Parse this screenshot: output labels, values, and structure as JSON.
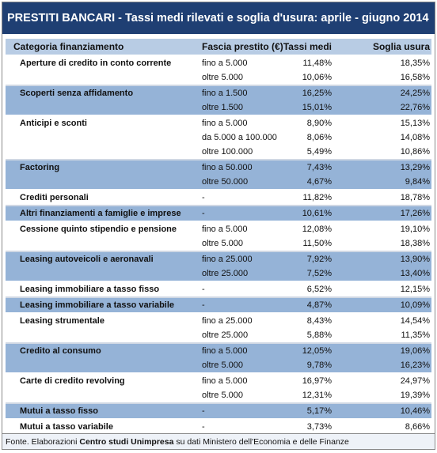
{
  "title": "PRESTITI BANCARI - Tassi medi rilevati e soglia d'usura: aprile - giugno 2014",
  "header": [
    "Categoria finanziamento",
    "Fascia prestito (€)",
    "Tassi medi",
    "Soglia usura"
  ],
  "groups": [
    {
      "category": "Aperture di credito in conto corrente",
      "rows": [
        [
          "fino a 5.000",
          "11,48%",
          "18,35%"
        ],
        [
          "oltre 5.000",
          "10,06%",
          "16,58%"
        ]
      ]
    },
    {
      "category": "Scoperti senza affidamento",
      "rows": [
        [
          "fino a 1.500",
          "16,25%",
          "24,25%"
        ],
        [
          "oltre 1.500",
          "15,01%",
          "22,76%"
        ]
      ]
    },
    {
      "category": "Anticipi e sconti",
      "rows": [
        [
          "fino a 5.000",
          "8,90%",
          "15,13%"
        ],
        [
          "da 5.000 a 100.000",
          "8,06%",
          "14,08%"
        ],
        [
          "oltre 100.000",
          "5,49%",
          "10,86%"
        ]
      ]
    },
    {
      "category": "Factoring",
      "rows": [
        [
          "fino a 50.000",
          "7,43%",
          "13,29%"
        ],
        [
          "oltre 50.000",
          "4,67%",
          "9,84%"
        ]
      ]
    },
    {
      "category": "Crediti personali",
      "rows": [
        [
          "-",
          "11,82%",
          "18,78%"
        ]
      ]
    },
    {
      "category": "Altri finanziamenti a famiglie e imprese",
      "rows": [
        [
          "-",
          "10,61%",
          "17,26%"
        ]
      ]
    },
    {
      "category": "Cessione quinto stipendio e pensione",
      "rows": [
        [
          "fino a 5.000",
          "12,08%",
          "19,10%"
        ],
        [
          "oltre 5.000",
          "11,50%",
          "18,38%"
        ]
      ]
    },
    {
      "category": "Leasing autoveicoli e aeronavali",
      "rows": [
        [
          "fino a 25.000",
          "7,92%",
          "13,90%"
        ],
        [
          "oltre 25.000",
          "7,52%",
          "13,40%"
        ]
      ]
    },
    {
      "category": "Leasing immobiliare a tasso fisso",
      "rows": [
        [
          "-",
          "6,52%",
          "12,15%"
        ]
      ]
    },
    {
      "category": "Leasing immobiliare a tasso variabile",
      "rows": [
        [
          "-",
          "4,87%",
          "10,09%"
        ]
      ]
    },
    {
      "category": "Leasing strumentale",
      "rows": [
        [
          "fino a 25.000",
          "8,43%",
          "14,54%"
        ],
        [
          "oltre 25.000",
          "5,88%",
          "11,35%"
        ]
      ]
    },
    {
      "category": "Credito al consumo",
      "rows": [
        [
          "fino a 5.000",
          "12,05%",
          "19,06%"
        ],
        [
          "oltre 5.000",
          "9,78%",
          "16,23%"
        ]
      ]
    },
    {
      "category": "Carte di credito revolving",
      "rows": [
        [
          "fino a 5.000",
          "16,97%",
          "24,97%"
        ],
        [
          "oltre 5.000",
          "12,31%",
          "19,39%"
        ]
      ]
    },
    {
      "category": "Mutui a tasso fisso",
      "rows": [
        [
          "-",
          "5,17%",
          "10,46%"
        ]
      ]
    },
    {
      "category": "Mutui a tasso variabile",
      "rows": [
        [
          "-",
          "3,73%",
          "8,66%"
        ]
      ]
    }
  ],
  "footer": {
    "prefix": "Fonte. Elaborazioni",
    "bold": "Centro studi Unimpresa",
    "suffix": "su dati Ministero  dell'Economia e delle Finanze"
  }
}
